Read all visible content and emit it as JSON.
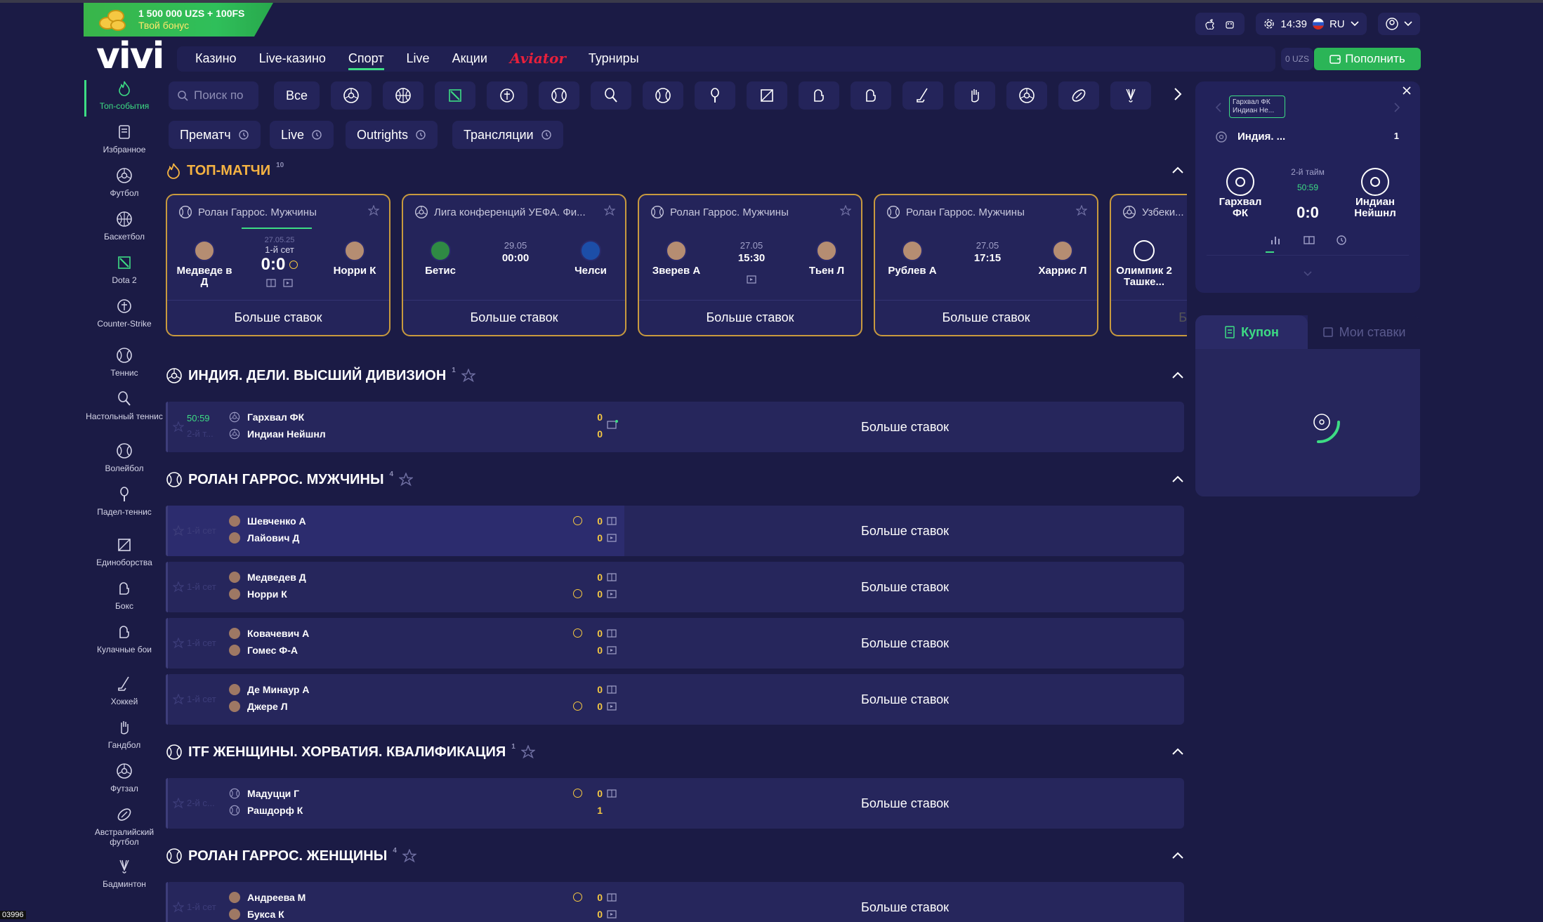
{
  "promo": {
    "line1": "1 500 000 UZS + 100FS",
    "line2": "Твой бонус"
  },
  "logo": "vivi",
  "header": {
    "time": "14:39",
    "lang": "RU",
    "balance": "0 UZS",
    "deposit": "Пополнить"
  },
  "nav": [
    "Казино",
    "Live-казино",
    "Спорт",
    "Live",
    "Акции",
    "Aviator",
    "Турниры"
  ],
  "nav_active": "Спорт",
  "search": {
    "placeholder": "Поиск по"
  },
  "all_label": "Все",
  "filters": [
    "Прематч",
    "Live",
    "Outrights",
    "Трансляции"
  ],
  "sidebar": [
    {
      "label": "Топ-события",
      "icon": "fire-icon",
      "active": true
    },
    {
      "label": "Избранное",
      "icon": "bookmark-icon"
    },
    {
      "label": "Футбол",
      "icon": "football-icon"
    },
    {
      "label": "Баскетбол",
      "icon": "basketball-icon"
    },
    {
      "label": "Dota 2",
      "icon": "dota-icon"
    },
    {
      "label": "Counter-Strike",
      "icon": "cs-icon"
    },
    {
      "label": "Теннис",
      "icon": "tennis-icon"
    },
    {
      "label": "Настольный теннис",
      "icon": "table-tennis-icon"
    },
    {
      "label": "Волейбол",
      "icon": "volleyball-icon"
    },
    {
      "label": "Падел-теннис",
      "icon": "padel-icon"
    },
    {
      "label": "Единоборства",
      "icon": "martial-arts-icon"
    },
    {
      "label": "Бокс",
      "icon": "boxing-icon"
    },
    {
      "label": "Кулачные бои",
      "icon": "fist-icon"
    },
    {
      "label": "Хоккей",
      "icon": "hockey-icon"
    },
    {
      "label": "Гандбол",
      "icon": "handball-icon"
    },
    {
      "label": "Футзал",
      "icon": "futsal-icon"
    },
    {
      "label": "Австралийский футбол",
      "icon": "aussie-football-icon"
    },
    {
      "label": "Бадминтон",
      "icon": "badminton-icon"
    }
  ],
  "top_matches": {
    "title": "ТОП-МАТЧИ",
    "count": "10",
    "cards": [
      {
        "league": "Ролан Гаррос. Мужчины",
        "home": "Медведе в Д",
        "away": "Норри К",
        "date": "27.05.25",
        "status": "1-й сет",
        "score": "0:0",
        "more": "Больше ставок"
      },
      {
        "league": "Лига конференций УЕФА. Фи...",
        "home": "Бетис",
        "away": "Челси",
        "date": "29.05",
        "time": "00:00",
        "more": "Больше ставок"
      },
      {
        "league": "Ролан Гаррос. Мужчины",
        "home": "Зверев А",
        "away": "Тьен Л",
        "date": "27.05",
        "time": "15:30",
        "more": "Больше ставок"
      },
      {
        "league": "Ролан Гаррос. Мужчины",
        "home": "Рублев А",
        "away": "Харрис Л",
        "date": "27.05",
        "time": "17:15",
        "more": "Больше ставок"
      },
      {
        "league": "Узбеки...",
        "home": "Олимпик 2 Ташке...",
        "more": "Б"
      }
    ]
  },
  "sections": [
    {
      "title": "ИНДИЯ. ДЕЛИ. ВЫСШИЙ ДИВИЗИОН",
      "count": "1",
      "rows": [
        {
          "time": "50:59",
          "period": "2-й т...",
          "p1": "Гархвал ФК",
          "p2": "Индиан Нейшнл",
          "s1": "0",
          "s2": "0",
          "more": "Больше ставок"
        }
      ]
    },
    {
      "title": "РОЛАН ГАРРОС. МУЖЧИНЫ",
      "count": "4",
      "rows": [
        {
          "period": "1-й сет",
          "p1": "Шевченко А",
          "p2": "Лайович Д",
          "s1": "0",
          "s2": "0",
          "more": "Больше ставок"
        },
        {
          "period": "1-й сет",
          "p1": "Медведев Д",
          "p2": "Норри К",
          "s1": "0",
          "s2": "0",
          "more": "Больше ставок"
        },
        {
          "period": "1-й сет",
          "p1": "Ковачевич А",
          "p2": "Гомес Ф-А",
          "s1": "0",
          "s2": "0",
          "more": "Больше ставок"
        },
        {
          "period": "1-й сет",
          "p1": "Де Минаур А",
          "p2": "Джере Л",
          "s1": "0",
          "s2": "0",
          "more": "Больше ставок"
        }
      ]
    },
    {
      "title": "ITF ЖЕНЩИНЫ. ХОРВАТИЯ. КВАЛИФИКАЦИЯ",
      "count": "1",
      "rows": [
        {
          "period": "2-й с...",
          "p1": "Мадуцци Г",
          "p2": "Рашдорф К",
          "s1": "0",
          "s2": "1",
          "more": "Больше ставок"
        }
      ]
    },
    {
      "title": "РОЛАН ГАРРОС. ЖЕНЩИНЫ",
      "count": "4",
      "rows": [
        {
          "period": "1-й сет",
          "p1": "Андреева М",
          "p2": "Букса К",
          "s1": "0",
          "s2": "0",
          "more": "Больше ставок"
        }
      ]
    }
  ],
  "live_panel": {
    "tab": "Гархвал ФК Индиан Не...",
    "league": "Индия. ...",
    "league_count": "1",
    "home": "Гархвал ФК",
    "away": "Индиан Нейшнл",
    "period": "2-й тайм",
    "time": "50:59",
    "score": "0:0"
  },
  "coupon": {
    "tab1": "Купон",
    "tab2": "Мои ставки"
  },
  "corner": "03996",
  "colors": {
    "bg": "#1b1b45",
    "panel": "#24245a",
    "accent": "#3ddc84",
    "gold": "#c89a3e",
    "live": "#3ddc84"
  }
}
